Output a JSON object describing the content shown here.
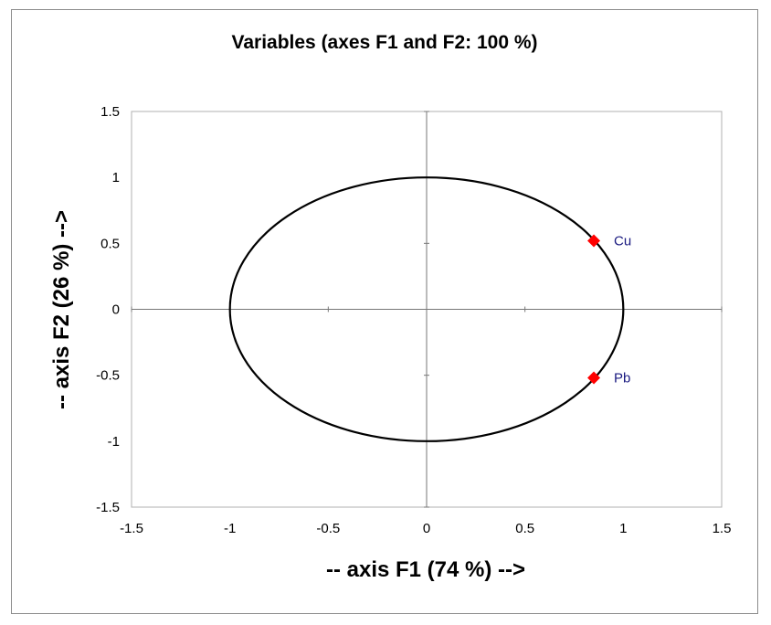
{
  "chart_data": {
    "type": "scatter",
    "title": "Variables (axes F1 and F2: 100 %)",
    "xlabel": "-- axis F1 (74 %) -->",
    "ylabel": "-- axis F2 (26 %) -->",
    "xlim": [
      -1.5,
      1.5
    ],
    "ylim": [
      -1.5,
      1.5
    ],
    "xticks": [
      -1.5,
      -1,
      -0.5,
      0,
      0.5,
      1,
      1.5
    ],
    "yticks": [
      -1.5,
      -1,
      -0.5,
      0,
      0.5,
      1,
      1.5
    ],
    "xtick_labels": [
      "-1.5",
      "-1",
      "-0.5",
      "0",
      "0.5",
      "1",
      "1.5"
    ],
    "ytick_labels": [
      "-1.5",
      "-1",
      "-0.5",
      "0",
      "0.5",
      "1",
      "1.5"
    ],
    "circle": {
      "center": [
        0,
        0
      ],
      "radius": 1
    },
    "points": [
      {
        "label": "Cu",
        "x": 0.85,
        "y": 0.52
      },
      {
        "label": "Pb",
        "x": 0.85,
        "y": -0.52
      }
    ],
    "marker_color": "#ff0000",
    "label_color": "#1a1a80",
    "grid": false
  }
}
